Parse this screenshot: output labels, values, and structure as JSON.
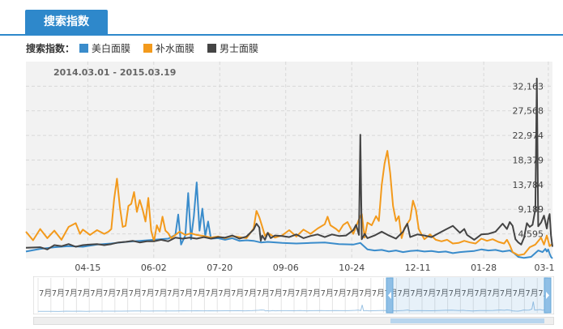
{
  "tab": {
    "label": "搜索指数"
  },
  "legend": {
    "label": "搜索指数：",
    "items": [
      {
        "name": "美白面膜",
        "color": "#3a8ccb"
      },
      {
        "name": "补水面膜",
        "color": "#f39a1c"
      },
      {
        "name": "男士面膜",
        "color": "#444444"
      }
    ]
  },
  "date_range": "2014.03.01 - 2015.03.19",
  "nav_tick_label": "7月",
  "nav_tick_count": 40,
  "chart_data": {
    "type": "line",
    "title": "",
    "subtitle": "2014.03.01 - 2015.03.19",
    "x_tick_labels": [
      "04-15",
      "06-02",
      "07-20",
      "09-06",
      "10-24",
      "12-11",
      "01-28",
      "03-1"
    ],
    "y_tick_labels": [
      "4,595",
      "9,189",
      "13,784",
      "18,379",
      "22,974",
      "27,568",
      "32,163"
    ],
    "ylim": [
      0,
      36758
    ],
    "grid": true,
    "legend_position": "top-left",
    "series": [
      {
        "name": "美白面膜",
        "color": "#3a8ccb",
        "points": [
          [
            0,
            1300
          ],
          [
            10,
            1800
          ],
          [
            20,
            2100
          ],
          [
            30,
            2300
          ],
          [
            40,
            2200
          ],
          [
            50,
            2600
          ],
          [
            60,
            2800
          ],
          [
            70,
            3100
          ],
          [
            80,
            3300
          ],
          [
            90,
            3500
          ],
          [
            100,
            3700
          ],
          [
            105,
            4400
          ],
          [
            107,
            8200
          ],
          [
            109,
            2600
          ],
          [
            112,
            4300
          ],
          [
            114,
            12200
          ],
          [
            116,
            3600
          ],
          [
            118,
            7900
          ],
          [
            120,
            14200
          ],
          [
            122,
            5200
          ],
          [
            124,
            9300
          ],
          [
            126,
            4200
          ],
          [
            128,
            6900
          ],
          [
            130,
            3700
          ],
          [
            135,
            3800
          ],
          [
            140,
            3500
          ],
          [
            145,
            3800
          ],
          [
            150,
            3300
          ],
          [
            155,
            3400
          ],
          [
            160,
            3300
          ],
          [
            165,
            3000
          ],
          [
            170,
            3100
          ],
          [
            180,
            2900
          ],
          [
            190,
            2800
          ],
          [
            200,
            2900
          ],
          [
            210,
            3000
          ],
          [
            220,
            2700
          ],
          [
            230,
            2600
          ],
          [
            235,
            2900
          ],
          [
            240,
            1700
          ],
          [
            245,
            1500
          ],
          [
            250,
            1600
          ],
          [
            255,
            1300
          ],
          [
            260,
            1500
          ],
          [
            265,
            1200
          ],
          [
            270,
            1400
          ],
          [
            275,
            1500
          ],
          [
            280,
            1300
          ],
          [
            285,
            1400
          ],
          [
            290,
            1200
          ],
          [
            295,
            1300
          ],
          [
            300,
            1000
          ],
          [
            305,
            1200
          ],
          [
            310,
            1300
          ],
          [
            315,
            1400
          ],
          [
            320,
            1700
          ],
          [
            325,
            1500
          ],
          [
            330,
            1600
          ],
          [
            335,
            1300
          ],
          [
            340,
            1500
          ],
          [
            343,
            1000
          ],
          [
            346,
            300
          ],
          [
            350,
            100
          ],
          [
            355,
            300
          ],
          [
            360,
            1500
          ],
          [
            363,
            1200
          ],
          [
            365,
            1800
          ],
          [
            366,
            1300
          ],
          [
            367,
            1700
          ],
          [
            368,
            900
          ],
          [
            369,
            300
          ],
          [
            370,
            0
          ]
        ]
      },
      {
        "name": "补水面膜",
        "color": "#f39a1c",
        "points": [
          [
            0,
            5000
          ],
          [
            5,
            3400
          ],
          [
            10,
            5500
          ],
          [
            15,
            3800
          ],
          [
            20,
            5200
          ],
          [
            25,
            3500
          ],
          [
            30,
            5900
          ],
          [
            35,
            6600
          ],
          [
            38,
            4600
          ],
          [
            40,
            5400
          ],
          [
            45,
            4400
          ],
          [
            50,
            5300
          ],
          [
            55,
            4600
          ],
          [
            58,
            5000
          ],
          [
            60,
            5500
          ],
          [
            62,
            11100
          ],
          [
            64,
            14900
          ],
          [
            66,
            9700
          ],
          [
            68,
            5900
          ],
          [
            70,
            6100
          ],
          [
            72,
            9800
          ],
          [
            74,
            10200
          ],
          [
            76,
            12400
          ],
          [
            78,
            8700
          ],
          [
            80,
            10900
          ],
          [
            82,
            9100
          ],
          [
            84,
            6900
          ],
          [
            86,
            11300
          ],
          [
            88,
            5200
          ],
          [
            90,
            3200
          ],
          [
            92,
            6200
          ],
          [
            94,
            5000
          ],
          [
            96,
            7800
          ],
          [
            98,
            5200
          ],
          [
            100,
            4700
          ],
          [
            102,
            3800
          ],
          [
            105,
            4400
          ],
          [
            108,
            5000
          ],
          [
            112,
            4400
          ],
          [
            116,
            4700
          ],
          [
            120,
            4400
          ],
          [
            125,
            4200
          ],
          [
            130,
            3900
          ],
          [
            135,
            4100
          ],
          [
            140,
            3800
          ],
          [
            145,
            4200
          ],
          [
            150,
            4000
          ],
          [
            155,
            3800
          ],
          [
            160,
            5600
          ],
          [
            162,
            8900
          ],
          [
            164,
            7700
          ],
          [
            166,
            6000
          ],
          [
            168,
            4200
          ],
          [
            170,
            4800
          ],
          [
            175,
            3900
          ],
          [
            180,
            4300
          ],
          [
            185,
            5300
          ],
          [
            190,
            4100
          ],
          [
            195,
            5400
          ],
          [
            200,
            4600
          ],
          [
            205,
            5600
          ],
          [
            210,
            6400
          ],
          [
            212,
            7800
          ],
          [
            214,
            6200
          ],
          [
            218,
            5500
          ],
          [
            220,
            5000
          ],
          [
            223,
            6300
          ],
          [
            226,
            6800
          ],
          [
            230,
            4600
          ],
          [
            234,
            7300
          ],
          [
            236,
            8300
          ],
          [
            238,
            3900
          ],
          [
            240,
            6700
          ],
          [
            243,
            6200
          ],
          [
            246,
            7900
          ],
          [
            248,
            7000
          ],
          [
            250,
            13700
          ],
          [
            252,
            17700
          ],
          [
            254,
            20100
          ],
          [
            256,
            15900
          ],
          [
            258,
            9800
          ],
          [
            260,
            7000
          ],
          [
            262,
            7900
          ],
          [
            264,
            3800
          ],
          [
            266,
            5700
          ],
          [
            270,
            7300
          ],
          [
            272,
            10800
          ],
          [
            274,
            9100
          ],
          [
            276,
            5500
          ],
          [
            278,
            4500
          ],
          [
            280,
            3600
          ],
          [
            284,
            4500
          ],
          [
            288,
            3500
          ],
          [
            292,
            3200
          ],
          [
            296,
            3500
          ],
          [
            300,
            2800
          ],
          [
            304,
            2900
          ],
          [
            308,
            3300
          ],
          [
            312,
            3000
          ],
          [
            316,
            2800
          ],
          [
            320,
            3700
          ],
          [
            324,
            3300
          ],
          [
            328,
            3600
          ],
          [
            332,
            3100
          ],
          [
            336,
            2800
          ],
          [
            338,
            3500
          ],
          [
            340,
            2500
          ],
          [
            342,
            1200
          ],
          [
            346,
            600
          ],
          [
            350,
            800
          ],
          [
            354,
            2100
          ],
          [
            358,
            2600
          ],
          [
            362,
            3900
          ],
          [
            364,
            2600
          ],
          [
            366,
            4300
          ],
          [
            368,
            2300
          ],
          [
            370,
            2800
          ]
        ]
      },
      {
        "name": "男士面膜",
        "color": "#444444",
        "points": [
          [
            0,
            2000
          ],
          [
            10,
            2100
          ],
          [
            15,
            1700
          ],
          [
            20,
            2500
          ],
          [
            25,
            2300
          ],
          [
            30,
            2700
          ],
          [
            35,
            2200
          ],
          [
            40,
            2500
          ],
          [
            45,
            2600
          ],
          [
            50,
            2700
          ],
          [
            55,
            2500
          ],
          [
            60,
            2700
          ],
          [
            65,
            3000
          ],
          [
            70,
            3100
          ],
          [
            75,
            3300
          ],
          [
            80,
            3000
          ],
          [
            85,
            3200
          ],
          [
            90,
            3200
          ],
          [
            95,
            3500
          ],
          [
            100,
            3200
          ],
          [
            105,
            3900
          ],
          [
            110,
            3700
          ],
          [
            115,
            3900
          ],
          [
            120,
            3700
          ],
          [
            125,
            4000
          ],
          [
            130,
            3700
          ],
          [
            135,
            4000
          ],
          [
            140,
            3900
          ],
          [
            145,
            4300
          ],
          [
            150,
            3700
          ],
          [
            155,
            4100
          ],
          [
            160,
            5400
          ],
          [
            162,
            6500
          ],
          [
            164,
            5800
          ],
          [
            165,
            3300
          ],
          [
            166,
            4300
          ],
          [
            168,
            3500
          ],
          [
            170,
            4800
          ],
          [
            172,
            3800
          ],
          [
            175,
            4300
          ],
          [
            180,
            4200
          ],
          [
            185,
            4000
          ],
          [
            190,
            4500
          ],
          [
            195,
            3800
          ],
          [
            200,
            4200
          ],
          [
            205,
            4500
          ],
          [
            210,
            4000
          ],
          [
            215,
            4500
          ],
          [
            220,
            4200
          ],
          [
            225,
            4300
          ],
          [
            230,
            5300
          ],
          [
            232,
            6300
          ],
          [
            234,
            4400
          ],
          [
            235,
            23100
          ],
          [
            236,
            3600
          ],
          [
            238,
            4600
          ],
          [
            240,
            3800
          ],
          [
            245,
            4300
          ],
          [
            250,
            5000
          ],
          [
            255,
            4300
          ],
          [
            260,
            3700
          ],
          [
            265,
            5000
          ],
          [
            268,
            6500
          ],
          [
            270,
            4000
          ],
          [
            275,
            4500
          ],
          [
            280,
            4300
          ],
          [
            285,
            4000
          ],
          [
            290,
            4700
          ],
          [
            295,
            5400
          ],
          [
            300,
            6100
          ],
          [
            305,
            4800
          ],
          [
            308,
            5500
          ],
          [
            310,
            4400
          ],
          [
            315,
            3500
          ],
          [
            320,
            4500
          ],
          [
            325,
            4600
          ],
          [
            330,
            5000
          ],
          [
            335,
            6500
          ],
          [
            338,
            5500
          ],
          [
            340,
            6800
          ],
          [
            342,
            6100
          ],
          [
            344,
            3600
          ],
          [
            346,
            3000
          ],
          [
            348,
            2600
          ],
          [
            350,
            3900
          ],
          [
            352,
            6600
          ],
          [
            354,
            5900
          ],
          [
            356,
            6300
          ],
          [
            358,
            9200
          ],
          [
            359,
            33600
          ],
          [
            360,
            6000
          ],
          [
            362,
            6700
          ],
          [
            364,
            8000
          ],
          [
            366,
            5600
          ],
          [
            367,
            7300
          ],
          [
            368,
            8300
          ],
          [
            369,
            4300
          ],
          [
            370,
            2200
          ]
        ]
      }
    ]
  }
}
